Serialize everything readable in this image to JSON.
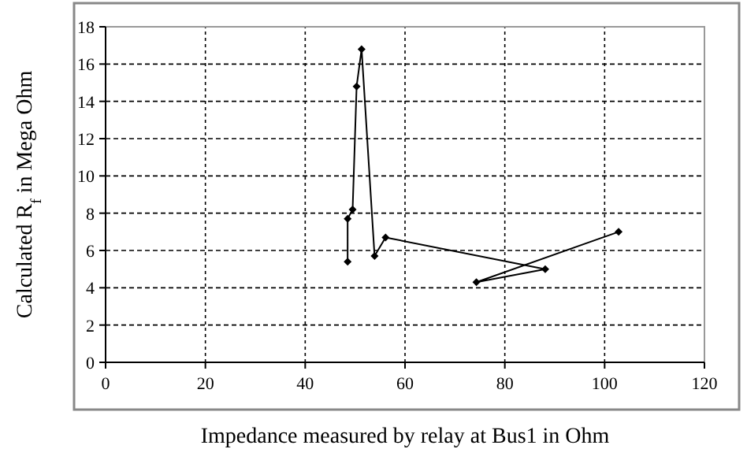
{
  "chart_data": {
    "type": "line",
    "xlabel": "Impedance measured by relay at Bus1 in Ohm",
    "ylabel": "Calculated R$_{f}$ in Mega Ohm",
    "x": [
      48.5,
      48.5,
      49.5,
      50.3,
      51.3,
      53.9,
      56.1,
      88.1,
      74.3,
      102.8
    ],
    "series": [
      {
        "color": "#000000",
        "values": [
          5.4,
          7.7,
          8.2,
          14.8,
          16.8,
          5.7,
          6.7,
          5.0,
          4.3,
          7.0
        ]
      }
    ],
    "xlim": [
      0,
      120
    ],
    "xticks": [
      0,
      20,
      40,
      60,
      80,
      100,
      120
    ],
    "ylim": [
      0,
      18
    ],
    "yticks": [
      0,
      2,
      4,
      6,
      8,
      10,
      12,
      14,
      16,
      18
    ],
    "grid": true,
    "marker": "diamond",
    "line_style": "solid"
  }
}
